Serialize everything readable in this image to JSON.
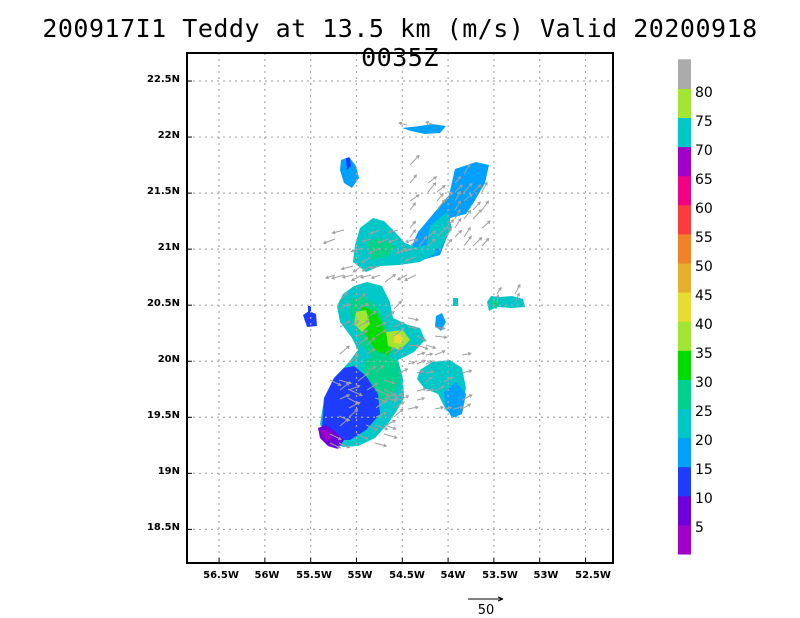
{
  "title": "200917I1 Teddy at 13.5 km (m/s) Valid 20200918  0035Z",
  "lat_labels": [
    "22.5N",
    "22N",
    "21.5N",
    "21N",
    "20.5N",
    "20N",
    "19.5N",
    "19N",
    "18.5N"
  ],
  "lon_labels": [
    "56.5W",
    "56W",
    "55.5W",
    "55W",
    "54.5W",
    "54W",
    "53.5W",
    "53W",
    "52.5W"
  ],
  "lat_values": [
    22.5,
    22.0,
    21.5,
    21.0,
    20.5,
    20.0,
    19.5,
    19.0,
    18.5
  ],
  "lon_values": [
    -56.5,
    -56.0,
    -55.5,
    -55.0,
    -54.5,
    -54.0,
    -53.5,
    -53.0,
    -52.5
  ],
  "map_extent": {
    "lon_min": -56.85,
    "lon_max": -52.2,
    "lat_min": 18.2,
    "lat_max": 22.75
  },
  "colorbar": {
    "labels": [
      "5",
      "10",
      "15",
      "20",
      "25",
      "30",
      "35",
      "40",
      "45",
      "50",
      "55",
      "60",
      "65",
      "70",
      "75",
      "80"
    ],
    "colors": [
      "#a000c8",
      "#6e00dc",
      "#1e3cff",
      "#00a0ff",
      "#00c8c8",
      "#00d28c",
      "#00dc00",
      "#a0e632",
      "#e6dc32",
      "#e6af2d",
      "#f08228",
      "#fa3c3c",
      "#f00082",
      "#a000c8",
      "#00c8c8",
      "#a0e632",
      "#aaaaaa"
    ]
  },
  "reference_vector": {
    "label": "50"
  },
  "grid": true,
  "colors": {
    "grid": "#aaaaaa",
    "vector": "#a0a0a0",
    "frame": "#000000"
  }
}
